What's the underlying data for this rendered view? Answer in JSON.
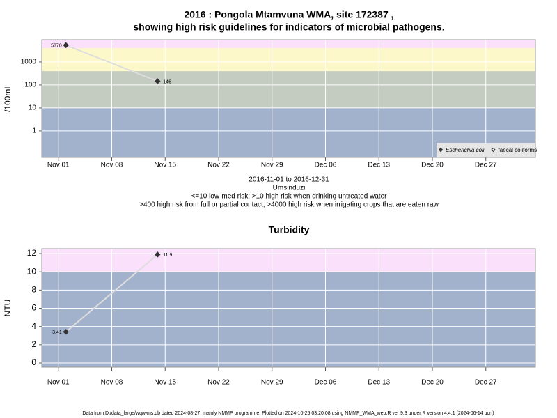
{
  "chart_data": [
    {
      "type": "line",
      "title": "2016 : Pongola Mtamvuna WMA, site 172387 ,",
      "subtitle": "showing high risk guidelines for indicators of microbial pathogens.",
      "ylabel": "/100mL",
      "log_y": true,
      "x": [
        "2016-11-02",
        "2016-11-14"
      ],
      "series": [
        {
          "name": "Escherichia coli",
          "color": "#333333",
          "marker": "filled",
          "values": [
            5370,
            146
          ],
          "value_labels": [
            "5370",
            "146"
          ]
        },
        {
          "name": "faecal coliforms",
          "color": "#333333",
          "marker": "hollow",
          "values": [
            null,
            null
          ]
        }
      ],
      "line_color": "#dddddd",
      "xlim": [
        "2016-10-29T20:00",
        "2017-01-02T12:00"
      ],
      "xticks": [
        {
          "value": "2016-11-01",
          "label": "Nov 01"
        },
        {
          "value": "2016-11-08",
          "label": "Nov 08"
        },
        {
          "value": "2016-11-15",
          "label": "Nov 15"
        },
        {
          "value": "2016-11-22",
          "label": "Nov 22"
        },
        {
          "value": "2016-11-29",
          "label": "Nov 29"
        },
        {
          "value": "2016-12-06",
          "label": "Dec 06"
        },
        {
          "value": "2016-12-13",
          "label": "Dec 13"
        },
        {
          "value": "2016-12-20",
          "label": "Dec 20"
        },
        {
          "value": "2016-12-27",
          "label": "Dec 27"
        }
      ],
      "ylim": [
        0.07,
        9300
      ],
      "yticks": [
        1,
        10,
        100,
        1000
      ],
      "thresholds": [
        10,
        400,
        4000
      ],
      "band_colors": [
        "#a3b2cc",
        "#c4cbc0",
        "#fdf8c9",
        "#fbe0fb"
      ],
      "grid": true,
      "legend": "bottom-right",
      "notes": [
        "2016-11-01 to 2016-12-31",
        "Umsinduzi",
        "<=10 low-med risk; >10 high risk when drinking untreated water",
        ">400 high risk from full or partial contact; >4000 high risk when irrigating crops that are eaten raw"
      ]
    },
    {
      "type": "line",
      "title": "Turbidity",
      "ylabel": "NTU",
      "log_y": false,
      "x": [
        "2016-11-02",
        "2016-11-14"
      ],
      "series": [
        {
          "name": "Turbidity",
          "color": "#333333",
          "marker": "filled",
          "values": [
            3.41,
            11.9
          ],
          "value_labels": [
            "3.41",
            "11.9"
          ]
        }
      ],
      "line_color": "#dddddd",
      "xlim": [
        "2016-10-29T20:00",
        "2017-01-02T12:00"
      ],
      "xticks": [
        {
          "value": "2016-11-01",
          "label": "Nov 01"
        },
        {
          "value": "2016-11-08",
          "label": "Nov 08"
        },
        {
          "value": "2016-11-15",
          "label": "Nov 15"
        },
        {
          "value": "2016-11-22",
          "label": "Nov 22"
        },
        {
          "value": "2016-11-29",
          "label": "Nov 29"
        },
        {
          "value": "2016-12-06",
          "label": "Dec 06"
        },
        {
          "value": "2016-12-13",
          "label": "Dec 13"
        },
        {
          "value": "2016-12-20",
          "label": "Dec 20"
        },
        {
          "value": "2016-12-27",
          "label": "Dec 27"
        }
      ],
      "ylim": [
        -0.46,
        12.54
      ],
      "yticks": [
        0,
        2,
        4,
        6,
        8,
        10,
        12
      ],
      "thresholds": [
        10
      ],
      "band_colors": [
        "#a3b2cc",
        "#fbe0fb"
      ],
      "grid": true
    }
  ],
  "footer": "Data from D:/data_large/wq/wms.db dated 2024-08-27, mainly NMMP programme. Plotted on 2024-10-25 03:20:08 using NMMP_WMA_web.R ver 9.3 under R version 4.4.1 (2024-06-14 ucrt)"
}
